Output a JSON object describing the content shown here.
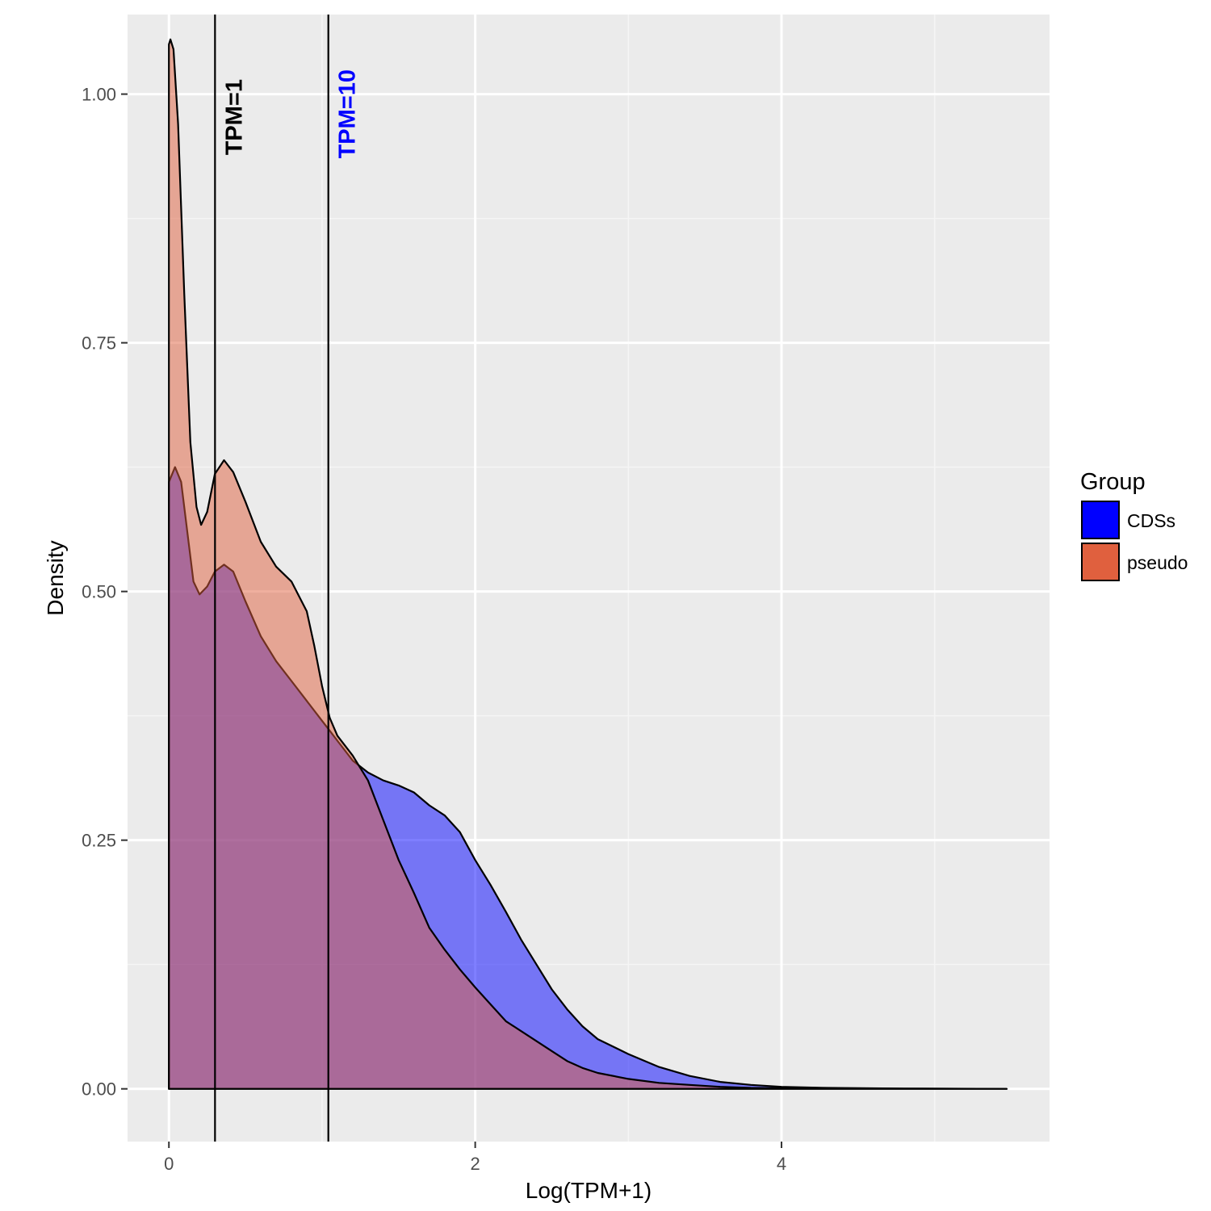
{
  "chart_data": {
    "type": "area",
    "title": "",
    "xlabel": "Log(TPM+1)",
    "ylabel": "Density",
    "xlim": [
      -0.27,
      5.75
    ],
    "ylim": [
      -0.053,
      1.08
    ],
    "x_ticks": [
      {
        "value": 0,
        "label": "0"
      },
      {
        "value": 2,
        "label": "2"
      },
      {
        "value": 4,
        "label": "4"
      }
    ],
    "y_ticks": [
      {
        "value": 0.0,
        "label": "0.00"
      },
      {
        "value": 0.25,
        "label": "0.25"
      },
      {
        "value": 0.5,
        "label": "0.50"
      },
      {
        "value": 0.75,
        "label": "0.75"
      },
      {
        "value": 1.0,
        "label": "1.00"
      }
    ],
    "grid": true,
    "legend": {
      "title": "Group",
      "position": "right",
      "entries": [
        {
          "label": "CDSs",
          "color": "#0000FF"
        },
        {
          "label": "pseudo",
          "color": "#E0603E"
        }
      ]
    },
    "vlines": [
      {
        "x": 0.301,
        "label": "TPM=1",
        "label_color": "#000000"
      },
      {
        "x": 1.041,
        "label": "TPM=10",
        "label_color": "#0000FF"
      }
    ],
    "series": [
      {
        "name": "CDSs",
        "color": "#0000FF",
        "opacity": 0.5,
        "points": [
          [
            0.0,
            0.61
          ],
          [
            0.04,
            0.625
          ],
          [
            0.08,
            0.61
          ],
          [
            0.12,
            0.56
          ],
          [
            0.16,
            0.51
          ],
          [
            0.2,
            0.497
          ],
          [
            0.25,
            0.505
          ],
          [
            0.3,
            0.52
          ],
          [
            0.36,
            0.527
          ],
          [
            0.42,
            0.52
          ],
          [
            0.5,
            0.49
          ],
          [
            0.6,
            0.455
          ],
          [
            0.7,
            0.43
          ],
          [
            0.8,
            0.41
          ],
          [
            0.9,
            0.39
          ],
          [
            1.0,
            0.37
          ],
          [
            1.05,
            0.36
          ],
          [
            1.1,
            0.35
          ],
          [
            1.2,
            0.33
          ],
          [
            1.3,
            0.318
          ],
          [
            1.4,
            0.31
          ],
          [
            1.5,
            0.305
          ],
          [
            1.6,
            0.298
          ],
          [
            1.7,
            0.285
          ],
          [
            1.8,
            0.275
          ],
          [
            1.9,
            0.258
          ],
          [
            2.0,
            0.23
          ],
          [
            2.1,
            0.205
          ],
          [
            2.2,
            0.178
          ],
          [
            2.3,
            0.15
          ],
          [
            2.4,
            0.125
          ],
          [
            2.5,
            0.1
          ],
          [
            2.6,
            0.08
          ],
          [
            2.7,
            0.063
          ],
          [
            2.8,
            0.05
          ],
          [
            3.0,
            0.035
          ],
          [
            3.2,
            0.022
          ],
          [
            3.4,
            0.013
          ],
          [
            3.6,
            0.007
          ],
          [
            3.8,
            0.004
          ],
          [
            4.0,
            0.002
          ],
          [
            4.3,
            0.001
          ],
          [
            4.8,
            0.0003
          ],
          [
            5.47,
            0.0
          ]
        ]
      },
      {
        "name": "pseudo",
        "color": "#E0603E",
        "opacity": 0.5,
        "points": [
          [
            0.0,
            1.05
          ],
          [
            0.01,
            1.055
          ],
          [
            0.03,
            1.045
          ],
          [
            0.06,
            0.97
          ],
          [
            0.1,
            0.8
          ],
          [
            0.14,
            0.65
          ],
          [
            0.18,
            0.585
          ],
          [
            0.21,
            0.567
          ],
          [
            0.25,
            0.58
          ],
          [
            0.3,
            0.618
          ],
          [
            0.36,
            0.632
          ],
          [
            0.42,
            0.62
          ],
          [
            0.5,
            0.59
          ],
          [
            0.6,
            0.55
          ],
          [
            0.7,
            0.525
          ],
          [
            0.8,
            0.51
          ],
          [
            0.9,
            0.48
          ],
          [
            0.95,
            0.445
          ],
          [
            1.0,
            0.405
          ],
          [
            1.05,
            0.373
          ],
          [
            1.1,
            0.355
          ],
          [
            1.2,
            0.335
          ],
          [
            1.3,
            0.31
          ],
          [
            1.4,
            0.27
          ],
          [
            1.5,
            0.23
          ],
          [
            1.6,
            0.197
          ],
          [
            1.7,
            0.162
          ],
          [
            1.8,
            0.14
          ],
          [
            1.9,
            0.12
          ],
          [
            2.0,
            0.102
          ],
          [
            2.1,
            0.085
          ],
          [
            2.2,
            0.068
          ],
          [
            2.3,
            0.058
          ],
          [
            2.4,
            0.048
          ],
          [
            2.5,
            0.038
          ],
          [
            2.6,
            0.028
          ],
          [
            2.7,
            0.021
          ],
          [
            2.8,
            0.016
          ],
          [
            3.0,
            0.01
          ],
          [
            3.2,
            0.006
          ],
          [
            3.4,
            0.004
          ],
          [
            3.6,
            0.002
          ],
          [
            3.8,
            0.001
          ],
          [
            4.2,
            0.0005
          ],
          [
            5.47,
            0.0
          ]
        ]
      }
    ]
  }
}
